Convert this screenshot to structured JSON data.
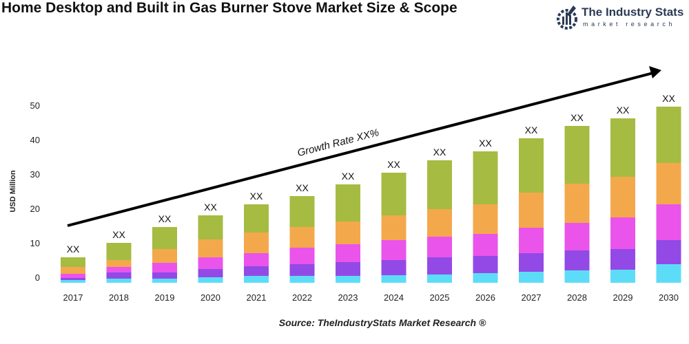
{
  "title": "Home Desktop and Built in Gas Burner Stove Market Size & Scope",
  "logo": {
    "name": "The Industry Stats",
    "tagline": "market research"
  },
  "source": "Source: TheIndustryStats Market Research ®",
  "chart_data": {
    "type": "bar",
    "stacked": true,
    "title": "Home Desktop and Built in Gas Burner Stove Market Size & Scope",
    "xlabel": "",
    "ylabel": "USD Million",
    "ylim": [
      0,
      50
    ],
    "yticks": [
      0,
      10,
      20,
      30,
      40,
      50
    ],
    "grid": false,
    "categories": [
      "2017",
      "2018",
      "2019",
      "2020",
      "2021",
      "2022",
      "2023",
      "2024",
      "2025",
      "2026",
      "2027",
      "2028",
      "2029",
      "2030"
    ],
    "data_labels": [
      "XX",
      "XX",
      "XX",
      "XX",
      "XX",
      "XX",
      "XX",
      "XX",
      "XX",
      "XX",
      "XX",
      "XX",
      "XX",
      "XX"
    ],
    "annotation": "Growth Rate XX%",
    "series": [
      {
        "color": "#5ddcf8",
        "values": [
          0.8,
          1.2,
          1.2,
          1.6,
          2.0,
          2.0,
          2.0,
          2.2,
          2.4,
          2.8,
          3.2,
          3.6,
          3.8,
          5.4
        ]
      },
      {
        "color": "#9349e6",
        "values": [
          0.6,
          1.8,
          1.8,
          2.4,
          2.8,
          3.4,
          4.0,
          4.4,
          5.0,
          5.0,
          5.4,
          5.8,
          6.0,
          7.0
        ]
      },
      {
        "color": "#ea54ea",
        "values": [
          1.2,
          1.6,
          2.8,
          3.4,
          3.8,
          4.8,
          5.2,
          5.8,
          6.0,
          6.4,
          7.4,
          8.0,
          9.2,
          10.4
        ]
      },
      {
        "color": "#f4a84c",
        "values": [
          2.0,
          2.0,
          4.0,
          5.2,
          6.0,
          6.0,
          6.6,
          7.2,
          8.0,
          8.6,
          10.2,
          11.4,
          11.8,
          12.0
        ]
      },
      {
        "color": "#a6bb42",
        "values": [
          2.8,
          5.0,
          6.4,
          7.0,
          8.2,
          9.0,
          10.8,
          12.4,
          14.2,
          15.4,
          15.8,
          16.8,
          17.0,
          16.4
        ]
      }
    ]
  }
}
